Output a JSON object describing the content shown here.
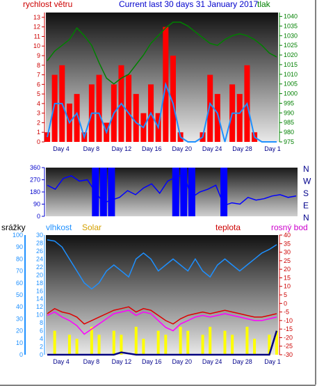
{
  "chart_data": [
    {
      "type": "line",
      "title": "Current last 30 days 31 January 2017",
      "left_axis_label": "rychlost větru",
      "right_axis_label": "tlak",
      "x_ticks": [
        "Day 4",
        "Day 8",
        "Day 12",
        "Day 16",
        "Day 20",
        "Day 24",
        "Day 28",
        "Day 1"
      ],
      "left_ticks": [
        "0",
        "1",
        "2",
        "3",
        "4",
        "5",
        "6",
        "7",
        "8",
        "9",
        "10",
        "11",
        "12",
        "13"
      ],
      "left_ylim": [
        0,
        13.5
      ],
      "right_ticks": [
        "975",
        "980",
        "985",
        "990",
        "995",
        "1000",
        "1005",
        "1010",
        "1015",
        "1020",
        "1025",
        "1030",
        "1035",
        "1040"
      ],
      "right_ylim": [
        975,
        1042
      ],
      "x": [
        1,
        2,
        3,
        4,
        5,
        6,
        7,
        8,
        9,
        10,
        11,
        12,
        13,
        14,
        15,
        16,
        17,
        18,
        19,
        20,
        21,
        22,
        23,
        24,
        25,
        26,
        27,
        28,
        29,
        30,
        31,
        32
      ],
      "series": [
        {
          "color": "#ff0000",
          "values": [
            1,
            7,
            8,
            4,
            5,
            1,
            6,
            7,
            2,
            6,
            8,
            7,
            5,
            3,
            6,
            3,
            12,
            9,
            1,
            0,
            0,
            1,
            7,
            5,
            0,
            6,
            5,
            8,
            1,
            0,
            0,
            0
          ]
        },
        {
          "color": "#1e90ff",
          "values": [
            0.5,
            4,
            4,
            2,
            3,
            0.5,
            3,
            3,
            1,
            3,
            4,
            3,
            2,
            1.5,
            3,
            1.5,
            6,
            4,
            0.5,
            0,
            0,
            0.5,
            4,
            3,
            0,
            3,
            3,
            4,
            0.5,
            0,
            0,
            0
          ]
        },
        {
          "color": "#008000",
          "values": [
            1017,
            1022,
            1025,
            1028,
            1034,
            1030,
            1025,
            1016,
            1008,
            1005,
            1008,
            1010,
            1015,
            1020,
            1026,
            1030,
            1034,
            1037,
            1037,
            1035,
            1032,
            1029,
            1026,
            1025,
            1028,
            1030,
            1031,
            1030,
            1028,
            1025,
            1021,
            1019
          ]
        }
      ]
    },
    {
      "type": "line",
      "right_axis_label": [
        "N",
        "W",
        "S",
        "E",
        "N"
      ],
      "left_ticks": [
        "0",
        "90",
        "180",
        "270",
        "360"
      ],
      "left_ylim": [
        0,
        360
      ],
      "series": [
        {
          "color": "#0000ff",
          "values": [
            230,
            200,
            280,
            300,
            260,
            270,
            180,
            100,
            120,
            140,
            190,
            160,
            210,
            240,
            170,
            260,
            290,
            310,
            140,
            180,
            200,
            230,
            80,
            100,
            90,
            140,
            120,
            130,
            150,
            160,
            140,
            150
          ]
        }
      ]
    },
    {
      "type": "line",
      "top_labels": [
        "srážky",
        "vlhkost",
        "Solar",
        "teplota",
        "rosný bod"
      ],
      "left_ticks_rain": [
        "0",
        "10",
        "20",
        "30",
        "40",
        "50",
        "60",
        "70",
        "80",
        "90",
        "100"
      ],
      "left_ticks_humidity": [
        "0",
        "2",
        "4",
        "6",
        "8",
        "10",
        "12",
        "14",
        "16",
        "18",
        "20",
        "22",
        "24",
        "26",
        "28",
        "30"
      ],
      "right_ticks": [
        "-30",
        "-25",
        "-20",
        "-15",
        "-10",
        "-5",
        "0",
        "5",
        "10",
        "15",
        "20",
        "25",
        "30",
        "35",
        "40"
      ],
      "series": [
        {
          "name": "vlhkost",
          "color": "#1e90ff",
          "values": [
            96,
            95,
            90,
            80,
            70,
            60,
            55,
            60,
            70,
            75,
            70,
            65,
            80,
            85,
            80,
            70,
            75,
            80,
            75,
            70,
            80,
            70,
            65,
            75,
            80,
            75,
            70,
            75,
            80,
            85,
            88,
            92
          ]
        },
        {
          "name": "teplota",
          "color": "#dd0000",
          "values": [
            -6,
            -3,
            -5,
            -6,
            -8,
            -12,
            -10,
            -8,
            -6,
            -4,
            -3,
            -2,
            -5,
            -3,
            -4,
            -7,
            -10,
            -12,
            -9,
            -7,
            -6,
            -5,
            -6,
            -5,
            -4,
            -5,
            -6,
            -7,
            -8,
            -8,
            -7,
            -6
          ]
        },
        {
          "name": "rosný bod",
          "color": "#ff00ff",
          "values": [
            -7,
            -5,
            -8,
            -10,
            -13,
            -18,
            -15,
            -12,
            -9,
            -6,
            -5,
            -4,
            -7,
            -5,
            -6,
            -10,
            -14,
            -16,
            -12,
            -10,
            -8,
            -7,
            -8,
            -7,
            -6,
            -7,
            -8,
            -9,
            -10,
            -10,
            -9,
            -8
          ]
        },
        {
          "name": "srážky",
          "color": "#000080",
          "values": [
            0,
            0,
            0,
            0,
            0,
            0,
            0,
            0,
            0,
            0,
            2,
            1,
            0,
            0,
            0,
            0,
            0,
            0,
            0,
            0,
            0,
            0,
            0,
            0,
            0,
            0,
            0,
            0,
            0,
            0,
            0,
            20
          ]
        },
        {
          "name": "Solar",
          "color": "#ffff00",
          "values": [
            0,
            6,
            0,
            5,
            4,
            0,
            7,
            5,
            0,
            6,
            5,
            0,
            7,
            4,
            0,
            6,
            5,
            0,
            7,
            6,
            0,
            5,
            7,
            0,
            6,
            5,
            0,
            7,
            4,
            0,
            5,
            6
          ]
        }
      ]
    }
  ]
}
